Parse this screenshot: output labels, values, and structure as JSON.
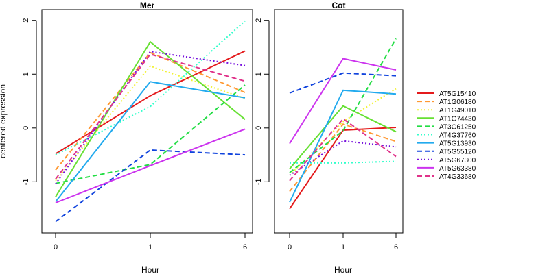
{
  "chart_data": {
    "type": "line",
    "ylabel": "centered expression",
    "xlabel": "Hour",
    "x_ticks": [
      "0",
      "1",
      "6"
    ],
    "y_ticks": [
      "-1",
      "0",
      "1",
      "2"
    ],
    "ylim": [
      -1.95,
      2.2
    ],
    "legend_position": "right",
    "series_styles": [
      {
        "name": "AT5G15410",
        "color": "#E41A1C",
        "dash": "solid"
      },
      {
        "name": "AT1G06180",
        "color": "#FF9933",
        "dash": "dashed"
      },
      {
        "name": "AT1G49010",
        "color": "#F2F233",
        "dash": "dotted"
      },
      {
        "name": "AT1G74430",
        "color": "#66E033",
        "dash": "solid"
      },
      {
        "name": "AT3G61250",
        "color": "#22DD44",
        "dash": "dashed"
      },
      {
        "name": "AT4G37760",
        "color": "#33FFCC",
        "dash": "dotted"
      },
      {
        "name": "AT5G13930",
        "color": "#22AAEE",
        "dash": "solid"
      },
      {
        "name": "AT5G55120",
        "color": "#1144DD",
        "dash": "dashed"
      },
      {
        "name": "AT5G67300",
        "color": "#7711DD",
        "dash": "dotted"
      },
      {
        "name": "AT5G63380",
        "color": "#CC33EE",
        "dash": "solid"
      },
      {
        "name": "AT4G33680",
        "color": "#E0338A",
        "dash": "dashed"
      }
    ],
    "panels": [
      {
        "title": "Mer",
        "series": [
          {
            "name": "AT5G15410",
            "values": [
              -0.48,
              0.6,
              1.43
            ]
          },
          {
            "name": "AT1G06180",
            "values": [
              -0.78,
              1.4,
              0.66
            ]
          },
          {
            "name": "AT1G49010",
            "values": [
              -0.98,
              1.15,
              0.55
            ]
          },
          {
            "name": "AT1G74430",
            "values": [
              -1.28,
              1.6,
              0.16
            ]
          },
          {
            "name": "AT3G61250",
            "values": [
              -1.03,
              -0.68,
              0.8
            ]
          },
          {
            "name": "AT4G37760",
            "values": [
              -0.5,
              0.4,
              1.99
            ]
          },
          {
            "name": "AT5G13930",
            "values": [
              -1.37,
              0.86,
              0.56
            ]
          },
          {
            "name": "AT5G55120",
            "values": [
              -1.74,
              -0.41,
              -0.5
            ]
          },
          {
            "name": "AT5G67300",
            "values": [
              -1.04,
              1.42,
              1.16
            ]
          },
          {
            "name": "AT5G63380",
            "values": [
              -1.39,
              -0.7,
              -0.02
            ]
          },
          {
            "name": "AT4G33680",
            "values": [
              -0.95,
              1.37,
              0.87
            ]
          }
        ]
      },
      {
        "title": "Cot",
        "series": [
          {
            "name": "AT5G15410",
            "values": [
              -1.5,
              -0.04,
              0.01
            ]
          },
          {
            "name": "AT1G06180",
            "values": [
              -1.18,
              0.07,
              -0.25
            ]
          },
          {
            "name": "AT1G49010",
            "values": [
              -0.88,
              0.12,
              0.73
            ]
          },
          {
            "name": "AT1G74430",
            "values": [
              -0.76,
              0.41,
              -0.07
            ]
          },
          {
            "name": "AT3G61250",
            "values": [
              -0.83,
              -0.05,
              1.66
            ]
          },
          {
            "name": "AT4G37760",
            "values": [
              -0.65,
              -0.65,
              -0.62
            ]
          },
          {
            "name": "AT5G13930",
            "values": [
              -1.38,
              0.7,
              0.63
            ]
          },
          {
            "name": "AT5G55120",
            "values": [
              0.65,
              1.02,
              0.97
            ]
          },
          {
            "name": "AT5G67300",
            "values": [
              -0.88,
              -0.24,
              -0.35
            ]
          },
          {
            "name": "AT5G63380",
            "values": [
              -0.29,
              1.29,
              1.08
            ]
          },
          {
            "name": "AT4G33680",
            "values": [
              -0.98,
              0.17,
              -0.53
            ]
          }
        ]
      }
    ]
  }
}
